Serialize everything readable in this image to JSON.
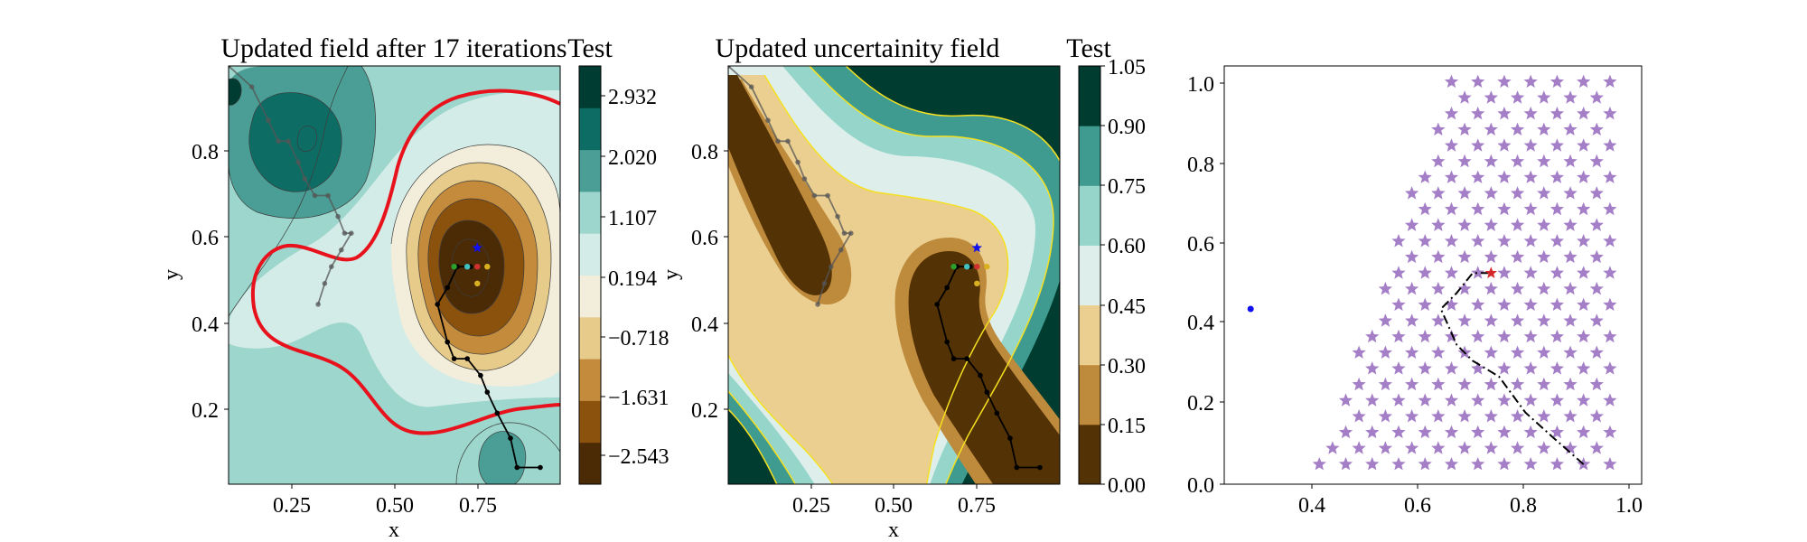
{
  "chart_data": [
    {
      "type": "contour",
      "title": "Updated field after 17 iterations",
      "xlabel": "x",
      "ylabel": "y",
      "xlim": [
        0,
        1
      ],
      "ylim": [
        0,
        1
      ],
      "xticks": [
        "0.25",
        "0.50",
        "0.75"
      ],
      "yticks": [
        "0.2",
        "0.4",
        "0.6",
        "0.8"
      ],
      "colorbar": {
        "title": "Test",
        "ticks": [
          "2.932",
          "2.020",
          "1.107",
          "0.194",
          "−0.718",
          "−1.631",
          "−2.543"
        ],
        "colors": [
          "#4b2b05",
          "#8b520e",
          "#c38b3b",
          "#e7cb8b",
          "#f3eedb",
          "#d4ece7",
          "#9cd6cc",
          "#4a9e95",
          "#0d6d65",
          "#013c33"
        ]
      },
      "threshold_color": "#e8121c",
      "paths": [
        {
          "name": "upper-path",
          "color": "#555555",
          "x": [
            0.0,
            0.07,
            0.12,
            0.15,
            0.18,
            0.21,
            0.23,
            0.26,
            0.3,
            0.33,
            0.35,
            0.37,
            0.34,
            0.31,
            0.29,
            0.27
          ],
          "y": [
            1.0,
            0.95,
            0.87,
            0.82,
            0.82,
            0.77,
            0.73,
            0.69,
            0.69,
            0.64,
            0.6,
            0.6,
            0.56,
            0.52,
            0.48,
            0.43
          ]
        },
        {
          "name": "lower-path",
          "color": "#000000",
          "x": [
            0.94,
            0.87,
            0.85,
            0.81,
            0.78,
            0.76,
            0.72,
            0.68,
            0.66,
            0.63,
            0.66,
            0.69,
            0.73
          ],
          "y": [
            0.04,
            0.04,
            0.11,
            0.17,
            0.22,
            0.26,
            0.3,
            0.3,
            0.34,
            0.43,
            0.47,
            0.52,
            0.52
          ]
        }
      ],
      "markers": [
        {
          "name": "best-point",
          "symbol": "star",
          "color": "#1010ee",
          "x": 0.75,
          "y": 0.565
        },
        {
          "name": "current-point",
          "color": "#2ca02c",
          "x": 0.68,
          "y": 0.52
        },
        {
          "name": "candidate-1",
          "color": "#40c0c0",
          "x": 0.72,
          "y": 0.52
        },
        {
          "name": "candidate-2",
          "color": "#d03030",
          "x": 0.75,
          "y": 0.52
        },
        {
          "name": "candidate-3",
          "color": "#d8b020",
          "x": 0.78,
          "y": 0.52
        },
        {
          "name": "candidate-4",
          "color": "#d8b020",
          "x": 0.75,
          "y": 0.48
        }
      ]
    },
    {
      "type": "contour",
      "title": "Updated uncertainity field",
      "xlabel": "x",
      "ylabel": "y",
      "xlim": [
        0,
        1
      ],
      "ylim": [
        0,
        1
      ],
      "xticks": [
        "0.25",
        "0.50",
        "0.75"
      ],
      "yticks": [
        "0.2",
        "0.4",
        "0.6",
        "0.8"
      ],
      "colorbar": {
        "title": "Test",
        "ticks": [
          "1.05",
          "0.90",
          "0.75",
          "0.60",
          "0.45",
          "0.30",
          "0.15",
          "0.00"
        ],
        "colors": [
          "#533205",
          "#be8a3c",
          "#ebcf90",
          "#deefeb",
          "#96d6ca",
          "#3f9a8f",
          "#003c30"
        ]
      },
      "contour_line_color": "#f5e020",
      "paths": [
        {
          "name": "upper-path",
          "color": "#555555",
          "x": [
            0.0,
            0.07,
            0.12,
            0.15,
            0.18,
            0.21,
            0.23,
            0.26,
            0.3,
            0.33,
            0.35,
            0.37,
            0.34,
            0.31,
            0.29,
            0.27
          ],
          "y": [
            1.0,
            0.95,
            0.87,
            0.82,
            0.82,
            0.77,
            0.73,
            0.69,
            0.69,
            0.64,
            0.6,
            0.6,
            0.56,
            0.52,
            0.48,
            0.43
          ]
        },
        {
          "name": "lower-path",
          "color": "#000000",
          "x": [
            0.94,
            0.87,
            0.85,
            0.81,
            0.78,
            0.76,
            0.72,
            0.68,
            0.66,
            0.63,
            0.66,
            0.69,
            0.73
          ],
          "y": [
            0.04,
            0.04,
            0.11,
            0.17,
            0.22,
            0.26,
            0.3,
            0.3,
            0.34,
            0.43,
            0.47,
            0.52,
            0.52
          ]
        }
      ],
      "markers": [
        {
          "name": "best-point",
          "symbol": "star",
          "color": "#1010ee",
          "x": 0.75,
          "y": 0.565
        },
        {
          "name": "current-point",
          "color": "#2ca02c",
          "x": 0.68,
          "y": 0.52
        },
        {
          "name": "candidate-1",
          "color": "#40c0c0",
          "x": 0.72,
          "y": 0.52
        },
        {
          "name": "candidate-2",
          "color": "#d03030",
          "x": 0.75,
          "y": 0.52
        },
        {
          "name": "candidate-3",
          "color": "#d8b020",
          "x": 0.78,
          "y": 0.52
        },
        {
          "name": "candidate-4",
          "color": "#d8b020",
          "x": 0.75,
          "y": 0.48
        }
      ]
    },
    {
      "type": "scatter",
      "xlim": [
        0.22,
        1.01
      ],
      "ylim": [
        -0.01,
        1.04
      ],
      "xticks": [
        "0.4",
        "0.6",
        "0.8",
        "1.0"
      ],
      "yticks": [
        "0.0",
        "0.2",
        "0.4",
        "0.6",
        "0.8",
        "1.0"
      ],
      "star_color": "#9467bd",
      "path_color": "#000000",
      "path": {
        "x": [
          0.9,
          0.84,
          0.79,
          0.74,
          0.69,
          0.66,
          0.63,
          0.66,
          0.69,
          0.72
        ],
        "y": [
          0.04,
          0.11,
          0.17,
          0.26,
          0.3,
          0.34,
          0.43,
          0.47,
          0.52,
          0.52
        ]
      },
      "markers": [
        {
          "name": "blue-dot",
          "color": "#1010ee",
          "x": 0.27,
          "y": 0.43
        },
        {
          "name": "red-star",
          "symbol": "star",
          "color": "#d62728",
          "x": 0.725,
          "y": 0.52
        }
      ]
    }
  ]
}
